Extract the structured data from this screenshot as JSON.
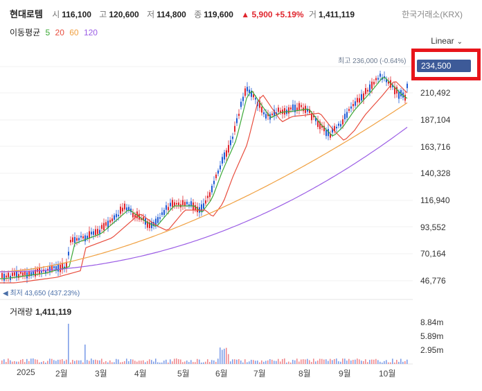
{
  "stock": {
    "name": "현대로템",
    "open_label": "시",
    "open": "116,100",
    "high_label": "고",
    "high": "120,600",
    "low_label": "저",
    "low": "114,800",
    "close_label": "종",
    "close": "119,600",
    "change": "▲ 5,900",
    "change_pct": "+5.19%",
    "volume_label": "거",
    "volume": "1,411,119"
  },
  "exchange": "한국거래소(KRX)",
  "moving_average": {
    "label": "이동평균",
    "periods": [
      "5",
      "20",
      "60",
      "120"
    ],
    "colors": [
      "#3aa835",
      "#e84c3d",
      "#f0a040",
      "#9b5de5"
    ]
  },
  "scale_selector": {
    "label": "Linear",
    "icon": "chevron-down-icon"
  },
  "annotations": {
    "high": "최고 236,000 (-0.64%)",
    "low": "◀ 최저 43,650 (437.23%)"
  },
  "current_price_tag": "234,500",
  "price_axis": [
    "210,492",
    "187,104",
    "163,716",
    "140,328",
    "116,940",
    "93,552",
    "70,164",
    "46,776"
  ],
  "volume_panel": {
    "label": "거래량",
    "value": "1,411,119",
    "axis": [
      "8.84m",
      "5.89m",
      "2.95m"
    ]
  },
  "time_axis": [
    "2025",
    "2월",
    "3월",
    "4월",
    "5월",
    "6월",
    "7월",
    "8월",
    "9월",
    "10월"
  ],
  "colors": {
    "up": "#e0262e",
    "down": "#1f5bd4",
    "tag": "#3d5a98",
    "highlight": "#e8151b"
  }
}
